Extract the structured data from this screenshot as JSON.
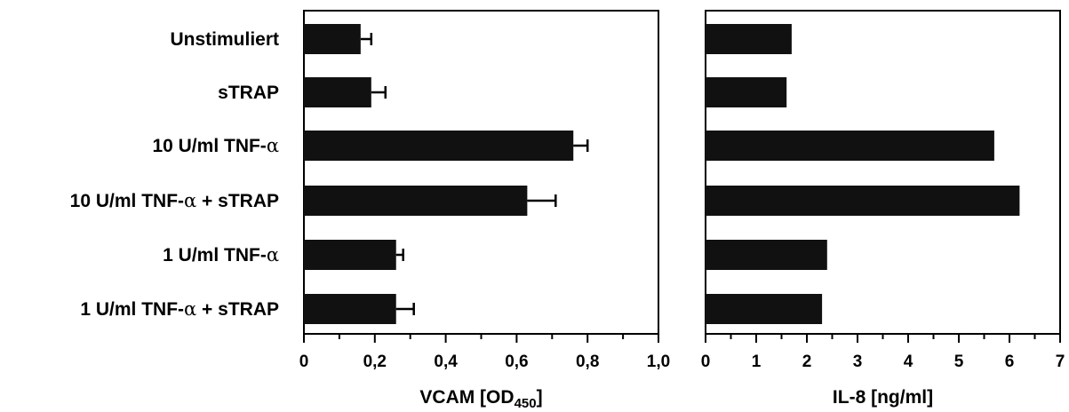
{
  "chart_data": [
    {
      "type": "bar",
      "orientation": "horizontal",
      "categories": [
        {
          "text": "Unstimuliert",
          "parts": [
            "Unstimuliert"
          ]
        },
        {
          "text": "sTRAP",
          "parts": [
            "sTRAP"
          ]
        },
        {
          "text": "10 U/ml TNF-α",
          "parts": [
            "10 U/ml TNF-",
            "α"
          ]
        },
        {
          "text": "10 U/ml TNF-α + sTRAP",
          "parts": [
            "10 U/ml TNF-",
            "α",
            " + sTRAP"
          ]
        },
        {
          "text": "1 U/ml TNF-α",
          "parts": [
            "1 U/ml TNF-",
            "α"
          ]
        },
        {
          "text": "1 U/ml TNF-α + sTRAP",
          "parts": [
            "1 U/ml TNF-",
            "α",
            " + sTRAP"
          ]
        }
      ],
      "values": [
        0.16,
        0.19,
        0.76,
        0.63,
        0.26,
        0.26
      ],
      "errors": [
        0.03,
        0.04,
        0.04,
        0.08,
        0.02,
        0.05
      ],
      "xlim": [
        0,
        1.0
      ],
      "ticks": [
        "0",
        "0,2",
        "0,4",
        "0,6",
        "0,8",
        "1,0"
      ],
      "xlabel": {
        "main": "VCAM [OD",
        "sub": "450",
        "end": "]"
      },
      "grid": false
    },
    {
      "type": "bar",
      "orientation": "horizontal",
      "values": [
        1.7,
        1.6,
        5.7,
        6.2,
        2.4,
        2.3
      ],
      "xlim": [
        0,
        7
      ],
      "ticks": [
        "0",
        "1",
        "2",
        "3",
        "4",
        "5",
        "6",
        "7"
      ],
      "xlabel": {
        "main": "IL-8 [ng/ml]"
      },
      "grid": false
    }
  ]
}
